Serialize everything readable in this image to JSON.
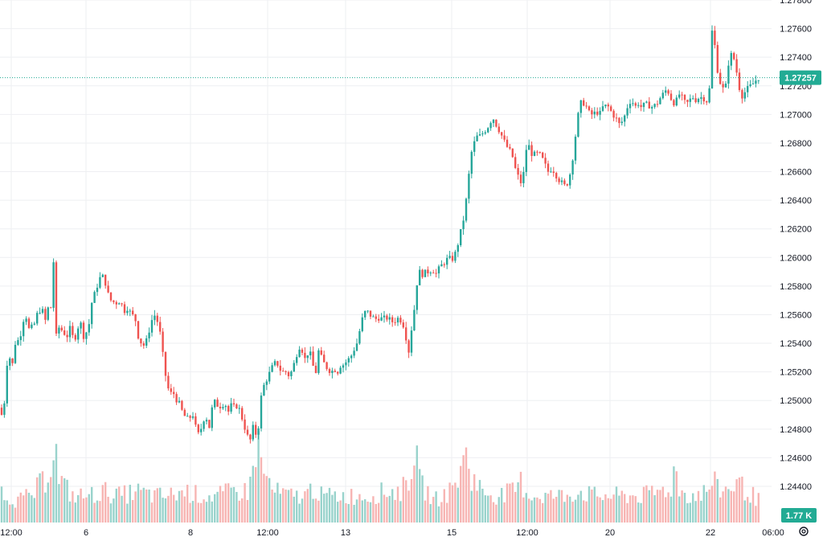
{
  "chart_data": {
    "type": "candlestick",
    "symbol_note": "",
    "price_axis": {
      "min": 1.246,
      "max": 1.278,
      "ticks": [
        "1.27800",
        "1.27600",
        "1.27400",
        "1.27200",
        "1.27000",
        "1.26800",
        "1.26600",
        "1.26400",
        "1.26200",
        "1.26000",
        "1.25800",
        "1.25600",
        "1.25400",
        "1.25200",
        "1.25000",
        "1.24800",
        "1.24600",
        "1.24400"
      ]
    },
    "time_axis": {
      "labels": [
        "12:00",
        "6",
        "8",
        "12:00",
        "13",
        "15",
        "12:00",
        "20",
        "22",
        "06:00"
      ]
    },
    "last_price": "1.27257",
    "last_price_value": 1.27257,
    "volume_label": "1.77 K",
    "colors": {
      "up": "#26a69a",
      "down": "#ef5350",
      "up_vol": "#99d3cc",
      "down_vol": "#f7b5b3",
      "grid": "#eeeff2",
      "badge": "#22ab94",
      "line": "#22ab94"
    },
    "grid": true,
    "price_path": [
      [
        0,
        1.2495
      ],
      [
        4,
        1.2485
      ],
      [
        8,
        1.2525
      ],
      [
        12,
        1.253
      ],
      [
        16,
        1.2525
      ],
      [
        20,
        1.2545
      ],
      [
        24,
        1.254
      ],
      [
        28,
        1.2555
      ],
      [
        32,
        1.256
      ],
      [
        36,
        1.255
      ],
      [
        42,
        1.2552
      ],
      [
        46,
        1.256
      ],
      [
        52,
        1.2565
      ],
      [
        56,
        1.2555
      ],
      [
        60,
        1.2565
      ],
      [
        64,
        1.2565
      ],
      [
        66,
        1.26
      ],
      [
        68,
        1.259
      ],
      [
        70,
        1.2545
      ],
      [
        74,
        1.2552
      ],
      [
        78,
        1.2548
      ],
      [
        84,
        1.2545
      ],
      [
        88,
        1.2552
      ],
      [
        92,
        1.254
      ],
      [
        96,
        1.255
      ],
      [
        100,
        1.2555
      ],
      [
        104,
        1.2545
      ],
      [
        110,
        1.255
      ],
      [
        114,
        1.2568
      ],
      [
        118,
        1.2575
      ],
      [
        122,
        1.2582
      ],
      [
        126,
        1.2588
      ],
      [
        130,
        1.2585
      ],
      [
        134,
        1.2575
      ],
      [
        138,
        1.257
      ],
      [
        144,
        1.2568
      ],
      [
        150,
        1.257
      ],
      [
        154,
        1.2562
      ],
      [
        158,
        1.2565
      ],
      [
        164,
        1.256
      ],
      [
        168,
        1.2558
      ],
      [
        172,
        1.2545
      ],
      [
        176,
        1.254
      ],
      [
        180,
        1.2538
      ],
      [
        184,
        1.2545
      ],
      [
        188,
        1.2555
      ],
      [
        192,
        1.256
      ],
      [
        196,
        1.2555
      ],
      [
        200,
        1.2545
      ],
      [
        204,
        1.2525
      ],
      [
        208,
        1.251
      ],
      [
        212,
        1.2505
      ],
      [
        216,
        1.2505
      ],
      [
        220,
        1.25
      ],
      [
        224,
        1.2497
      ],
      [
        228,
        1.249
      ],
      [
        234,
        1.2487
      ],
      [
        240,
        1.249
      ],
      [
        244,
        1.248
      ],
      [
        248,
        1.2475
      ],
      [
        252,
        1.2485
      ],
      [
        256,
        1.249
      ],
      [
        260,
        1.248
      ],
      [
        264,
        1.2495
      ],
      [
        268,
        1.25
      ],
      [
        272,
        1.2495
      ],
      [
        276,
        1.2497
      ],
      [
        280,
        1.2498
      ],
      [
        284,
        1.2492
      ],
      [
        288,
        1.2497
      ],
      [
        292,
        1.2495
      ],
      [
        296,
        1.2497
      ],
      [
        300,
        1.249
      ],
      [
        304,
        1.2482
      ],
      [
        308,
        1.2475
      ],
      [
        312,
        1.2472
      ],
      [
        316,
        1.2485
      ],
      [
        320,
        1.247
      ],
      [
        324,
        1.25
      ],
      [
        328,
        1.251
      ],
      [
        332,
        1.2515
      ],
      [
        336,
        1.252
      ],
      [
        340,
        1.2525
      ],
      [
        344,
        1.2527
      ],
      [
        350,
        1.252
      ],
      [
        356,
        1.252
      ],
      [
        360,
        1.2517
      ],
      [
        364,
        1.2522
      ],
      [
        368,
        1.253
      ],
      [
        372,
        1.2538
      ],
      [
        376,
        1.2535
      ],
      [
        380,
        1.2528
      ],
      [
        384,
        1.2535
      ],
      [
        388,
        1.253
      ],
      [
        392,
        1.2515
      ],
      [
        396,
        1.2535
      ],
      [
        400,
        1.253
      ],
      [
        404,
        1.2525
      ],
      [
        408,
        1.2522
      ],
      [
        412,
        1.252
      ],
      [
        416,
        1.2522
      ],
      [
        420,
        1.252
      ],
      [
        424,
        1.2525
      ],
      [
        428,
        1.2525
      ],
      [
        432,
        1.2528
      ],
      [
        436,
        1.253
      ],
      [
        440,
        1.2535
      ],
      [
        444,
        1.254
      ],
      [
        448,
        1.255
      ],
      [
        452,
        1.256
      ],
      [
        456,
        1.2563
      ],
      [
        460,
        1.256
      ],
      [
        464,
        1.2558
      ],
      [
        468,
        1.2557
      ],
      [
        472,
        1.2558
      ],
      [
        476,
        1.2557
      ],
      [
        480,
        1.2558
      ],
      [
        484,
        1.2557
      ],
      [
        488,
        1.2555
      ],
      [
        492,
        1.2556
      ],
      [
        496,
        1.2558
      ],
      [
        500,
        1.2555
      ],
      [
        504,
        1.255
      ],
      [
        506,
        1.254
      ],
      [
        508,
        1.253
      ],
      [
        510,
        1.2545
      ],
      [
        514,
        1.2555
      ],
      [
        518,
        1.258
      ],
      [
        522,
        1.259
      ],
      [
        526,
        1.2588
      ],
      [
        530,
        1.259
      ],
      [
        534,
        1.259
      ],
      [
        538,
        1.2592
      ],
      [
        542,
        1.2588
      ],
      [
        546,
        1.2592
      ],
      [
        550,
        1.2595
      ],
      [
        554,
        1.2597
      ],
      [
        558,
        1.26
      ],
      [
        562,
        1.2598
      ],
      [
        566,
        1.2602
      ],
      [
        570,
        1.261
      ],
      [
        574,
        1.262
      ],
      [
        578,
        1.263
      ],
      [
        582,
        1.265
      ],
      [
        586,
        1.2672
      ],
      [
        590,
        1.268
      ],
      [
        594,
        1.2685
      ],
      [
        598,
        1.2685
      ],
      [
        602,
        1.2688
      ],
      [
        606,
        1.269
      ],
      [
        610,
        1.2695
      ],
      [
        614,
        1.2697
      ],
      [
        618,
        1.2692
      ],
      [
        622,
        1.2688
      ],
      [
        626,
        1.2683
      ],
      [
        630,
        1.2678
      ],
      [
        634,
        1.2675
      ],
      [
        638,
        1.267
      ],
      [
        642,
        1.266
      ],
      [
        646,
        1.2655
      ],
      [
        650,
        1.265
      ],
      [
        654,
        1.2675
      ],
      [
        658,
        1.2678
      ],
      [
        662,
        1.2672
      ],
      [
        666,
        1.2672
      ],
      [
        670,
        1.2673
      ],
      [
        674,
        1.267
      ],
      [
        678,
        1.2665
      ],
      [
        682,
        1.266
      ],
      [
        686,
        1.2662
      ],
      [
        690,
        1.266
      ],
      [
        694,
        1.2655
      ],
      [
        698,
        1.2653
      ],
      [
        702,
        1.265
      ],
      [
        706,
        1.2652
      ],
      [
        710,
        1.266
      ],
      [
        714,
        1.2675
      ],
      [
        718,
        1.2695
      ],
      [
        722,
        1.2708
      ],
      [
        726,
        1.2708
      ],
      [
        730,
        1.2705
      ],
      [
        734,
        1.27
      ],
      [
        738,
        1.27
      ],
      [
        742,
        1.2702
      ],
      [
        746,
        1.27
      ],
      [
        750,
        1.2705
      ],
      [
        754,
        1.2706
      ],
      [
        758,
        1.2705
      ],
      [
        762,
        1.27
      ],
      [
        766,
        1.2698
      ],
      [
        770,
        1.2693
      ],
      [
        774,
        1.2695
      ],
      [
        778,
        1.27
      ],
      [
        782,
        1.2708
      ],
      [
        786,
        1.271
      ],
      [
        790,
        1.2705
      ],
      [
        794,
        1.2708
      ],
      [
        798,
        1.2705
      ],
      [
        802,
        1.2707
      ],
      [
        806,
        1.2707
      ],
      [
        810,
        1.2705
      ],
      [
        814,
        1.2706
      ],
      [
        818,
        1.2708
      ],
      [
        822,
        1.2712
      ],
      [
        826,
        1.2715
      ],
      [
        830,
        1.2718
      ],
      [
        834,
        1.2712
      ],
      [
        838,
        1.2708
      ],
      [
        842,
        1.271
      ],
      [
        846,
        1.2715
      ],
      [
        850,
        1.271
      ],
      [
        854,
        1.2707
      ],
      [
        858,
        1.271
      ],
      [
        862,
        1.2712
      ],
      [
        866,
        1.271
      ],
      [
        870,
        1.2712
      ],
      [
        874,
        1.2712
      ],
      [
        878,
        1.271
      ],
      [
        882,
        1.2708
      ],
      [
        884,
        1.274
      ],
      [
        886,
        1.2758
      ],
      [
        888,
        1.2755
      ],
      [
        890,
        1.2745
      ],
      [
        894,
        1.2725
      ],
      [
        898,
        1.272
      ],
      [
        902,
        1.2715
      ],
      [
        906,
        1.2735
      ],
      [
        910,
        1.2742
      ],
      [
        914,
        1.2738
      ],
      [
        918,
        1.2725
      ],
      [
        922,
        1.2712
      ],
      [
        926,
        1.2715
      ],
      [
        930,
        1.2718
      ],
      [
        934,
        1.272
      ],
      [
        938,
        1.2722
      ],
      [
        942,
        1.2725
      ],
      [
        944,
        1.27257
      ]
    ],
    "volume_path": [
      [
        0,
        0.35
      ],
      [
        20,
        0.25
      ],
      [
        40,
        0.3
      ],
      [
        60,
        0.55
      ],
      [
        64,
        0.75
      ],
      [
        68,
        1.0
      ],
      [
        72,
        0.5
      ],
      [
        90,
        0.3
      ],
      [
        110,
        0.3
      ],
      [
        130,
        0.35
      ],
      [
        150,
        0.3
      ],
      [
        170,
        0.35
      ],
      [
        190,
        0.3
      ],
      [
        210,
        0.3
      ],
      [
        230,
        0.35
      ],
      [
        250,
        0.3
      ],
      [
        270,
        0.3
      ],
      [
        290,
        0.35
      ],
      [
        310,
        0.35
      ],
      [
        320,
        0.95
      ],
      [
        326,
        0.6
      ],
      [
        340,
        0.35
      ],
      [
        360,
        0.3
      ],
      [
        380,
        0.3
      ],
      [
        390,
        0.4
      ],
      [
        400,
        0.3
      ],
      [
        420,
        0.3
      ],
      [
        440,
        0.3
      ],
      [
        460,
        0.3
      ],
      [
        480,
        0.35
      ],
      [
        500,
        0.35
      ],
      [
        510,
        0.55
      ],
      [
        516,
        0.85
      ],
      [
        522,
        0.45
      ],
      [
        540,
        0.25
      ],
      [
        560,
        0.35
      ],
      [
        576,
        0.6
      ],
      [
        580,
        0.95
      ],
      [
        584,
        0.55
      ],
      [
        600,
        0.35
      ],
      [
        620,
        0.3
      ],
      [
        640,
        0.35
      ],
      [
        648,
        0.45
      ],
      [
        660,
        0.3
      ],
      [
        680,
        0.3
      ],
      [
        700,
        0.3
      ],
      [
        720,
        0.35
      ],
      [
        740,
        0.3
      ],
      [
        760,
        0.3
      ],
      [
        780,
        0.3
      ],
      [
        800,
        0.3
      ],
      [
        820,
        0.35
      ],
      [
        836,
        0.4
      ],
      [
        840,
        0.65
      ],
      [
        846,
        0.35
      ],
      [
        860,
        0.3
      ],
      [
        880,
        0.35
      ],
      [
        886,
        0.45
      ],
      [
        900,
        0.35
      ],
      [
        916,
        0.45
      ],
      [
        930,
        0.35
      ],
      [
        944,
        0.25
      ]
    ]
  }
}
